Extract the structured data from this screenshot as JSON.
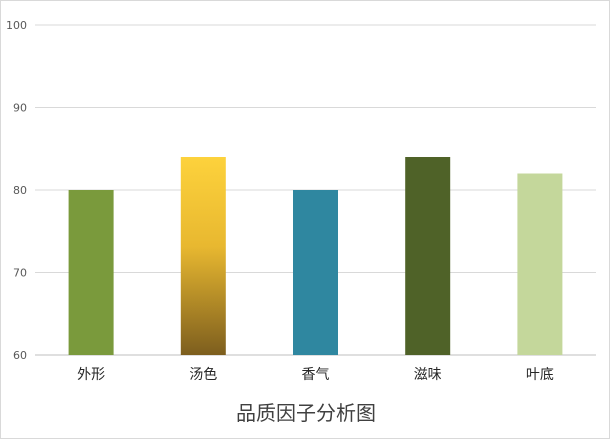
{
  "chart_data": {
    "type": "bar",
    "title": "品质因子分析图",
    "categories": [
      "外形",
      "汤色",
      "香气",
      "滋味",
      "叶底"
    ],
    "values": [
      80,
      84,
      80,
      84,
      82
    ],
    "ylim": [
      60,
      100
    ],
    "yticks": [
      60,
      70,
      80,
      90,
      100
    ],
    "grid": true,
    "legend": "none",
    "colors": [
      "#7a9a3c",
      "gradient:#fdd23c-#806020",
      "#2f87a0",
      "#4f6228",
      "#c4d79b"
    ]
  }
}
